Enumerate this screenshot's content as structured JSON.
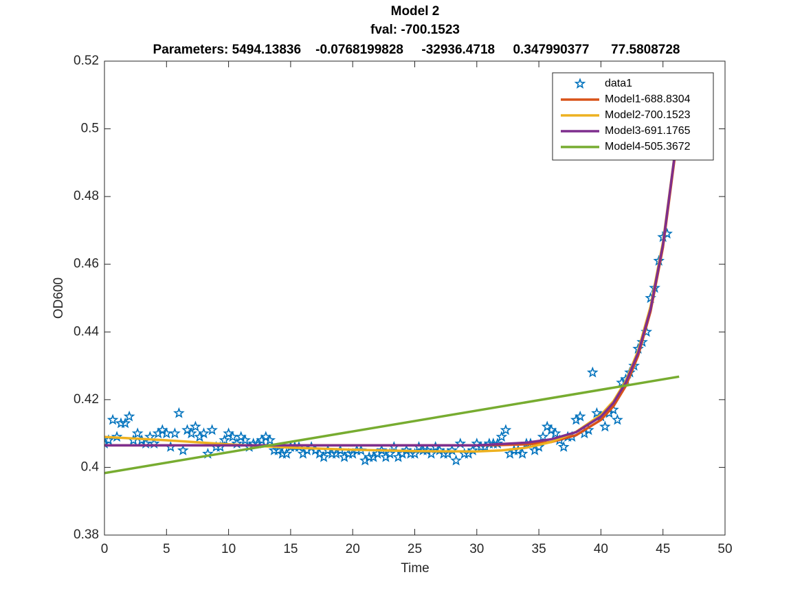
{
  "chart_data": {
    "type": "line",
    "title": "Model 2",
    "subtitle": "fval: -700.1523",
    "annotation": "Parameters: 5494.13836    -0.0768199828     -32936.4718     0.347990377      77.5808728",
    "x_label": "Time",
    "y_label": "OD600",
    "xlim": [
      0,
      50
    ],
    "xticks": [
      0,
      5,
      10,
      15,
      20,
      25,
      30,
      35,
      40,
      45,
      50
    ],
    "ylim": [
      0.38,
      0.52
    ],
    "yticks": [
      0.38,
      0.4,
      0.42,
      0.44,
      0.46,
      0.48,
      0.5,
      0.52
    ],
    "grid": false,
    "legend": "top-right",
    "series": [
      {
        "name": "data1",
        "color": "#0072BD",
        "marker": "star",
        "x": [
          0,
          0.33,
          0.67,
          1,
          1.33,
          1.67,
          2,
          2.33,
          2.67,
          3,
          3.33,
          3.67,
          4,
          4.33,
          4.67,
          5,
          5.33,
          5.67,
          6,
          6.33,
          6.67,
          7,
          7.33,
          7.67,
          8,
          8.33,
          8.67,
          9,
          9.33,
          9.67,
          10,
          10.33,
          10.67,
          11,
          11.33,
          11.67,
          12,
          12.33,
          12.67,
          13,
          13.33,
          13.67,
          14,
          14.33,
          14.67,
          15,
          15.33,
          15.67,
          16,
          16.33,
          16.67,
          17,
          17.33,
          17.67,
          18,
          18.33,
          18.67,
          19,
          19.33,
          19.67,
          20,
          20.33,
          20.67,
          21,
          21.33,
          21.67,
          22,
          22.33,
          22.67,
          23,
          23.33,
          23.67,
          24,
          24.33,
          24.67,
          25,
          25.33,
          25.67,
          26,
          26.33,
          26.67,
          27,
          27.33,
          27.67,
          28,
          28.33,
          28.67,
          29,
          29.33,
          29.67,
          30,
          30.33,
          30.67,
          31,
          31.33,
          31.67,
          32,
          32.33,
          32.67,
          33,
          33.33,
          33.67,
          34,
          34.33,
          34.67,
          35,
          35.33,
          35.67,
          36,
          36.33,
          36.67,
          37,
          37.33,
          37.67,
          38,
          38.33,
          38.67,
          39,
          39.33,
          39.67,
          40,
          40.33,
          40.67,
          41,
          41.33,
          41.67,
          42,
          42.33,
          42.67,
          43,
          43.33,
          43.67,
          44,
          44.33,
          44.67,
          45,
          45.33
        ],
        "values": [
          0.407,
          0.408,
          0.414,
          0.409,
          0.413,
          0.413,
          0.415,
          0.408,
          0.41,
          0.408,
          0.407,
          0.409,
          0.407,
          0.41,
          0.411,
          0.41,
          0.406,
          0.41,
          0.416,
          0.405,
          0.411,
          0.41,
          0.412,
          0.409,
          0.41,
          0.404,
          0.411,
          0.406,
          0.406,
          0.408,
          0.41,
          0.409,
          0.407,
          0.409,
          0.408,
          0.406,
          0.407,
          0.407,
          0.408,
          0.409,
          0.408,
          0.405,
          0.405,
          0.404,
          0.404,
          0.406,
          0.406,
          0.406,
          0.404,
          0.405,
          0.406,
          0.405,
          0.404,
          0.403,
          0.405,
          0.404,
          0.404,
          0.405,
          0.403,
          0.404,
          0.404,
          0.405,
          0.405,
          0.402,
          0.403,
          0.403,
          0.404,
          0.405,
          0.403,
          0.404,
          0.406,
          0.403,
          0.404,
          0.405,
          0.404,
          0.404,
          0.406,
          0.405,
          0.405,
          0.404,
          0.406,
          0.405,
          0.404,
          0.404,
          0.405,
          0.402,
          0.407,
          0.404,
          0.404,
          0.405,
          0.407,
          0.406,
          0.406,
          0.407,
          0.407,
          0.407,
          0.409,
          0.411,
          0.404,
          0.405,
          0.405,
          0.404,
          0.407,
          0.407,
          0.405,
          0.406,
          0.409,
          0.412,
          0.411,
          0.41,
          0.408,
          0.406,
          0.409,
          0.409,
          0.414,
          0.415,
          0.41,
          0.411,
          0.428,
          0.416,
          0.415,
          0.412,
          0.416,
          0.417,
          0.414,
          0.425,
          0.426,
          0.428,
          0.43,
          0.435,
          0.437,
          0.44,
          0.45,
          0.453,
          0.461,
          0.468,
          0.469
        ]
      },
      {
        "name": "Model1-688.8304",
        "color": "#D95319",
        "x": [
          0,
          5,
          10,
          15,
          20,
          25,
          30,
          32,
          34,
          36,
          38,
          40,
          41,
          42,
          43,
          44,
          45,
          46,
          46.5
        ],
        "values": [
          0.4065,
          0.4065,
          0.4065,
          0.4065,
          0.4065,
          0.4065,
          0.4065,
          0.4066,
          0.4068,
          0.4075,
          0.4095,
          0.414,
          0.418,
          0.424,
          0.433,
          0.446,
          0.465,
          0.493,
          0.512
        ]
      },
      {
        "name": "Model2-700.1523",
        "color": "#EDB120",
        "x": [
          0,
          5,
          10,
          15,
          20,
          25,
          30,
          32,
          34,
          36,
          38,
          40,
          41,
          42,
          43,
          44,
          45,
          46,
          46.5
        ],
        "values": [
          0.409,
          0.408,
          0.4068,
          0.4058,
          0.4052,
          0.4048,
          0.4047,
          0.405,
          0.4058,
          0.4075,
          0.4105,
          0.4155,
          0.4195,
          0.4255,
          0.4345,
          0.4475,
          0.4665,
          0.494,
          0.512
        ]
      },
      {
        "name": "Model3-691.1765",
        "color": "#7E2F8E",
        "x": [
          0,
          5,
          10,
          15,
          20,
          25,
          30,
          32,
          34,
          36,
          38,
          40,
          41,
          42,
          43,
          44,
          45,
          46,
          46.5
        ],
        "values": [
          0.4065,
          0.4065,
          0.4065,
          0.4065,
          0.4065,
          0.4065,
          0.4065,
          0.4069,
          0.4073,
          0.4083,
          0.4104,
          0.415,
          0.419,
          0.425,
          0.4338,
          0.4467,
          0.4658,
          0.4939,
          0.5125
        ]
      },
      {
        "name": "Model4-505.3672",
        "color": "#77AC30",
        "x": [
          0,
          46.3
        ],
        "values": [
          0.3983,
          0.4268
        ]
      }
    ]
  }
}
